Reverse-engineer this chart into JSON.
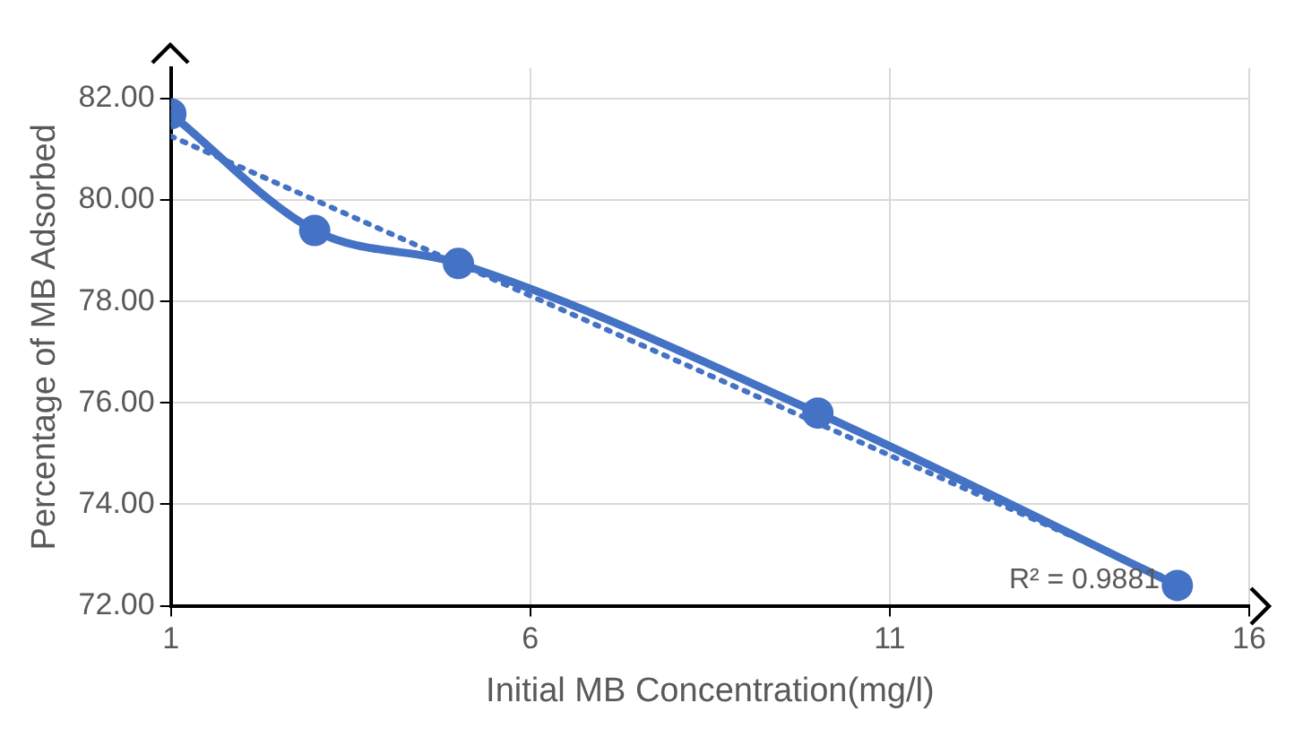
{
  "chart_data": {
    "type": "line",
    "xlabel": "Initial MB Concentration(mg/l)",
    "ylabel": "Percentage of MB Adsorbed",
    "xlim": [
      1,
      16
    ],
    "xticks": [
      1,
      6,
      11,
      16
    ],
    "ylim": [
      72,
      82.6
    ],
    "yticks": [
      {
        "value": 72,
        "label": "72.00"
      },
      {
        "value": 74,
        "label": "74.00"
      },
      {
        "value": 76,
        "label": "76.00"
      },
      {
        "value": 78,
        "label": "78.00"
      },
      {
        "value": 80,
        "label": "80.00"
      },
      {
        "value": 82,
        "label": "82.00"
      }
    ],
    "x": [
      1,
      3,
      5,
      10,
      15
    ],
    "series": [
      {
        "color": "#4472c4",
        "values": [
          81.7,
          79.4,
          78.75,
          75.8,
          72.4
        ],
        "marker": "circle",
        "line_style": "solid"
      },
      {
        "type": "line",
        "color": "#4472c4",
        "x": [
          1,
          15
        ],
        "values": [
          81.26,
          72.45
        ],
        "marker": "none",
        "line_style": "dotted"
      }
    ],
    "annotations": [
      "R² = 0.9881"
    ],
    "grid": true,
    "legend": false
  }
}
